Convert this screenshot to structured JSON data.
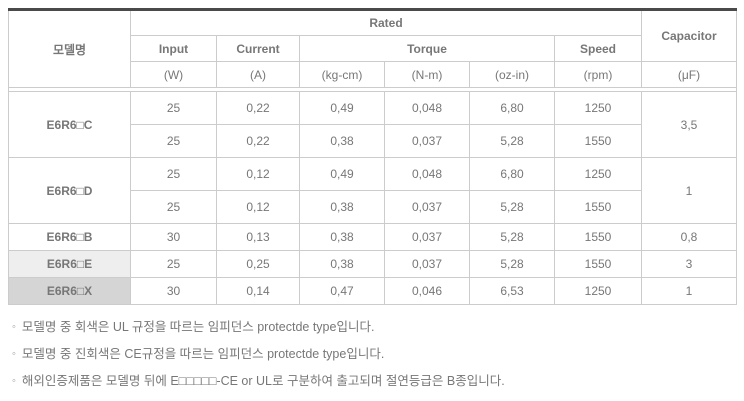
{
  "table": {
    "header": {
      "model_col": "모델명",
      "rated": "Rated",
      "capacitor": "Capacitor",
      "sub": {
        "input": "Input",
        "current": "Current",
        "torque": "Torque",
        "speed": "Speed"
      },
      "units": {
        "input_w": "(W)",
        "current_a": "(A)",
        "kg_cm": "(kg-cm)",
        "n_m": "(N-m)",
        "oz_in": "(oz-in)",
        "rpm": "(rpm)",
        "uf": "(μF)"
      }
    },
    "rows": [
      {
        "model": "E6R6□C",
        "shade": "none",
        "capacitor": "3,5",
        "lines": [
          [
            "25",
            "0,22",
            "0,49",
            "0,048",
            "6,80",
            "1250"
          ],
          [
            "25",
            "0,22",
            "0,38",
            "0,037",
            "5,28",
            "1550"
          ]
        ]
      },
      {
        "model": "E6R6□D",
        "shade": "none",
        "capacitor": "1",
        "lines": [
          [
            "25",
            "0,12",
            "0,49",
            "0,048",
            "6,80",
            "1250"
          ],
          [
            "25",
            "0,12",
            "0,38",
            "0,037",
            "5,28",
            "1550"
          ]
        ]
      },
      {
        "model": "E6R6□B",
        "shade": "none",
        "capacitor": "0,8",
        "lines": [
          [
            "30",
            "0,13",
            "0,38",
            "0,037",
            "5,28",
            "1550"
          ]
        ]
      },
      {
        "model": "E6R6□E",
        "shade": "ul_gray",
        "capacitor": "3",
        "lines": [
          [
            "25",
            "0,25",
            "0,38",
            "0,037",
            "5,28",
            "1550"
          ]
        ]
      },
      {
        "model": "E6R6□X",
        "shade": "ce_dark_gray",
        "capacitor": "1",
        "lines": [
          [
            "30",
            "0,14",
            "0,47",
            "0,046",
            "6,53",
            "1250"
          ]
        ]
      }
    ]
  },
  "note_bullet": "◦",
  "notes": [
    "모델명 중 회색은 UL 규정을 따르는 임피던스 protectde type입니다.",
    "모델명 중 진회색은 CE규정을 따르는 임피던스 protectde type입니다.",
    "해외인증제품은 모델명 뒤에 E□□□□□-CE or UL로 구분하여 출고되며 절연등급은 B종입니다."
  ],
  "colors": {
    "header_bg": "#f5f5f5",
    "ul_gray": "#eeeeee",
    "ce_dark_gray": "#d5d5d5",
    "top_border": "#4a4a4a",
    "grid_border": "#cccccc"
  }
}
